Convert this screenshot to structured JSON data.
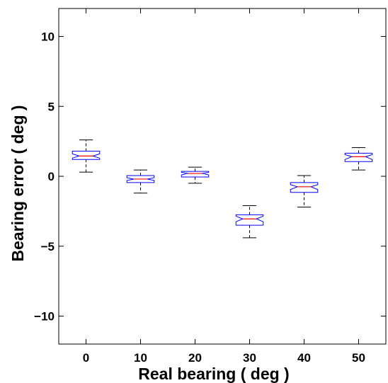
{
  "chart_data": {
    "type": "boxplot",
    "title": "",
    "xlabel": "Real bearing ( deg )",
    "ylabel": "Bearing error ( deg )",
    "xlim": [
      -0.5,
      5.5
    ],
    "ylim": [
      -12,
      12
    ],
    "x_ticks": [
      "0",
      "10",
      "20",
      "30",
      "40",
      "50"
    ],
    "y_ticks": [
      10,
      5,
      0,
      -5,
      -10
    ],
    "y_tick_labels": [
      "10",
      "5",
      "0",
      "−5",
      "−10"
    ],
    "notched": true,
    "grid": false,
    "colors": {
      "box": "#0000ff",
      "median": "#ff0000",
      "whisker": "#000000",
      "axis": "#000000"
    },
    "boxes": [
      {
        "category": "0",
        "whisker_low": 0.3,
        "q1": 1.2,
        "notch_low": 1.3,
        "median": 1.45,
        "notch_high": 1.6,
        "q3": 1.8,
        "whisker_high": 2.6
      },
      {
        "category": "10",
        "whisker_low": -1.2,
        "q1": -0.45,
        "notch_low": -0.3,
        "median": -0.2,
        "notch_high": -0.1,
        "q3": 0.05,
        "whisker_high": 0.45
      },
      {
        "category": "20",
        "whisker_low": -0.5,
        "q1": -0.05,
        "notch_low": 0.1,
        "median": 0.2,
        "notch_high": 0.28,
        "q3": 0.35,
        "whisker_high": 0.65
      },
      {
        "category": "30",
        "whisker_low": -4.4,
        "q1": -3.5,
        "notch_low": -3.25,
        "median": -3.05,
        "notch_high": -2.85,
        "q3": -2.75,
        "whisker_high": -2.1
      },
      {
        "category": "40",
        "whisker_low": -2.2,
        "q1": -1.15,
        "notch_low": -0.95,
        "median": -0.75,
        "notch_high": -0.6,
        "q3": -0.45,
        "whisker_high": 0.05
      },
      {
        "category": "50",
        "whisker_low": 0.45,
        "q1": 1.05,
        "notch_low": 1.2,
        "median": 1.4,
        "notch_high": 1.55,
        "q3": 1.65,
        "whisker_high": 2.05
      }
    ]
  }
}
